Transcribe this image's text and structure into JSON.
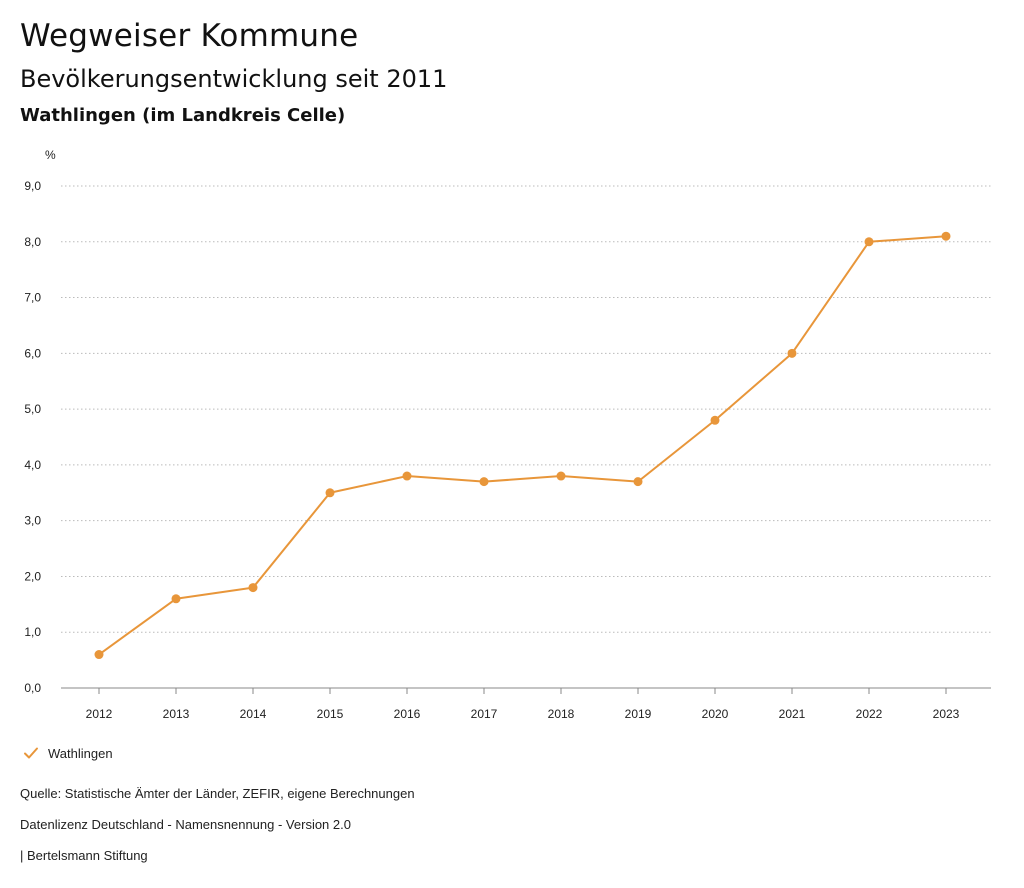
{
  "header": {
    "title": "Wegweiser Kommune",
    "subtitle": "Bevölkerungsentwicklung seit 2011",
    "region": "Wathlingen (im Landkreis Celle)"
  },
  "legend": {
    "label": "Wathlingen",
    "icon": "check-icon"
  },
  "footer": {
    "source": "Quelle: Statistische Ämter der Länder, ZEFIR, eigene Berechnungen",
    "license": "Datenlizenz Deutschland - Namensnennung - Version 2.0",
    "publisher": "| Bertelsmann Stiftung"
  },
  "colors": {
    "series": "#E8963A",
    "grid": "#BBBBBB",
    "axis": "#888888",
    "text": "#222222"
  },
  "chart_data": {
    "type": "line",
    "title": "Bevölkerungsentwicklung seit 2011",
    "ylabel": "%",
    "xlabel": "",
    "ylim": [
      0,
      9
    ],
    "yticks": [
      "0,0",
      "1,0",
      "2,0",
      "3,0",
      "4,0",
      "5,0",
      "6,0",
      "7,0",
      "8,0",
      "9,0"
    ],
    "grid": true,
    "legend_position": "bottom-left",
    "categories": [
      "2012",
      "2013",
      "2014",
      "2015",
      "2016",
      "2017",
      "2018",
      "2019",
      "2020",
      "2021",
      "2022",
      "2023"
    ],
    "series": [
      {
        "name": "Wathlingen",
        "values": [
          0.6,
          1.6,
          1.8,
          3.5,
          3.8,
          3.7,
          3.8,
          3.7,
          4.8,
          6.0,
          8.0,
          8.1
        ]
      }
    ]
  }
}
